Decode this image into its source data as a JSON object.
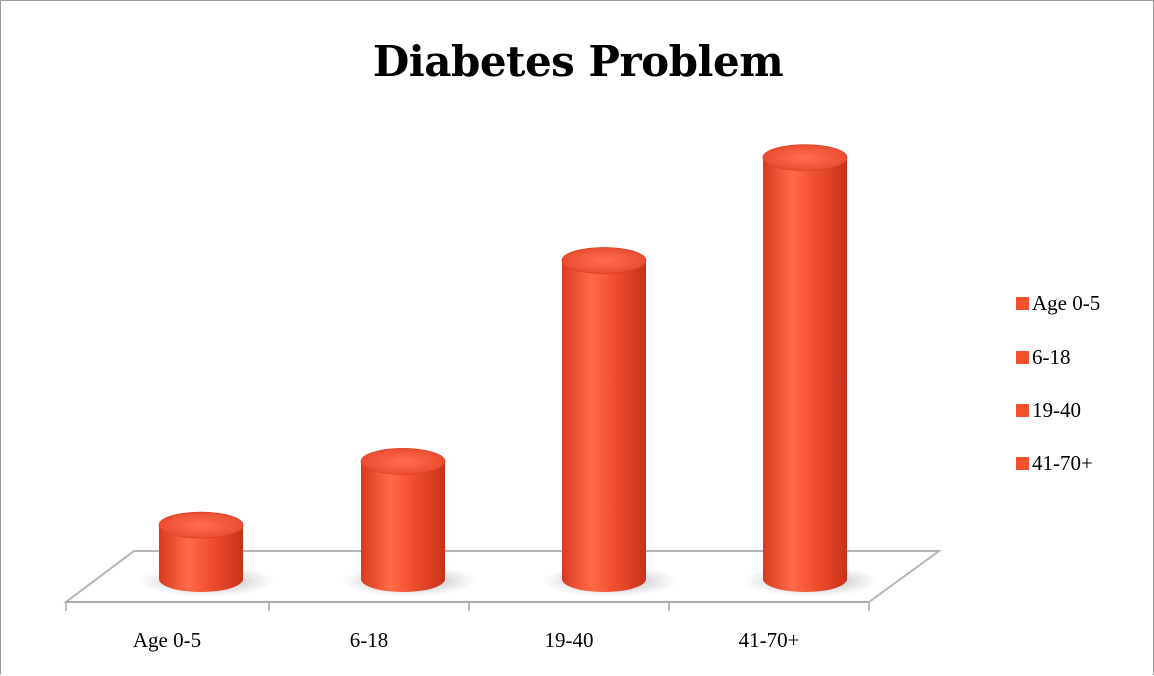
{
  "chart_data": {
    "type": "bar",
    "title": "Diabetes Problem",
    "categories": [
      "Age 0-5",
      "6-18",
      "19-40",
      "41-70+"
    ],
    "series": [
      {
        "values": [
          11,
          24,
          65,
          86
        ]
      }
    ],
    "legend": {
      "position": "right",
      "entries": [
        "Age 0-5",
        " 6-18",
        "19-40",
        "41-70+"
      ]
    },
    "ylim": [
      0,
      100
    ],
    "grid": false,
    "style": "3d-cylinder",
    "bar_color": "#f2502f"
  }
}
